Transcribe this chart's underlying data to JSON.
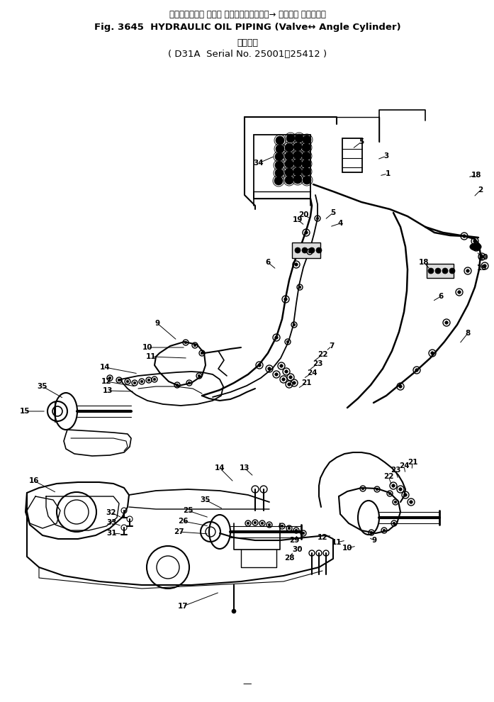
{
  "title_jp": "ハイドロリック オイル パイピング（バルブ→ アングル シリンダ）",
  "title_en1": "Fig. 3645  HYDRAULIC OIL PIPING (Valve↔ Angle Cylinder)",
  "title_jp2": "適用号機",
  "title_en2": "D31A  Serial No. 25001～25412",
  "bg_color": "#ffffff",
  "lc": "#000000",
  "fig_width": 6.97,
  "fig_height": 9.9,
  "dpi": 100
}
